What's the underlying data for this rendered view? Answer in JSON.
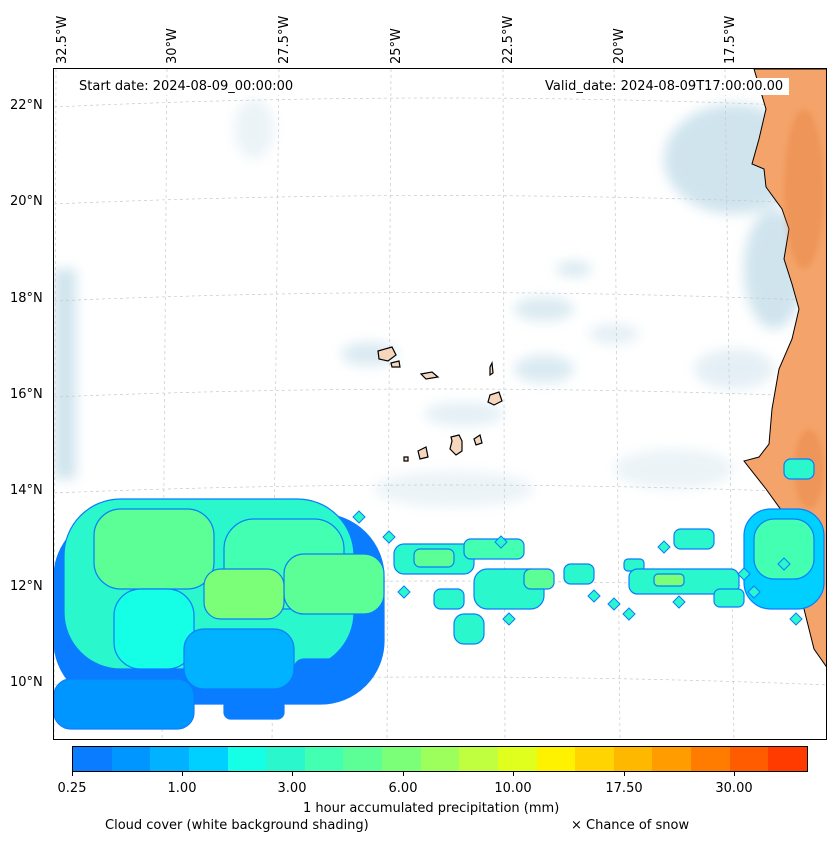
{
  "map": {
    "start_date": "Start date: 2024-08-09_00:00:00",
    "valid_date": "Valid_date: 2024-08-09T17:00:00.00",
    "lon_labels": [
      "32.5°W",
      "30°W",
      "27.5°W",
      "25°W",
      "22.5°W",
      "20°W",
      "17.5°W"
    ],
    "lat_labels": [
      "22°N",
      "20°N",
      "18°N",
      "16°N",
      "14°N",
      "12°N",
      "10°N"
    ],
    "land_color": "#f4a46a",
    "cloud_color": "#a9cfe0",
    "coastline_color": "#000000"
  },
  "colorbar": {
    "title": "1 hour accumulated precipitation (mm)",
    "tick_labels": [
      "0.25",
      "1.00",
      "3.00",
      "6.00",
      "10.00",
      "17.50",
      "30.00"
    ],
    "colors": [
      "#0a7cff",
      "#0096ff",
      "#00b2ff",
      "#00d0ff",
      "#14ffe6",
      "#2bf7cc",
      "#43ffb1",
      "#5cff95",
      "#7cff78",
      "#9cff5c",
      "#bfff3f",
      "#e0ff1c",
      "#fff200",
      "#ffd400",
      "#ffb800",
      "#ff9c00",
      "#ff7c00",
      "#ff5c00",
      "#ff3b00"
    ]
  },
  "legend": {
    "cloud_cover": "Cloud cover (white background shading)",
    "snow": "× Chance of snow"
  }
}
